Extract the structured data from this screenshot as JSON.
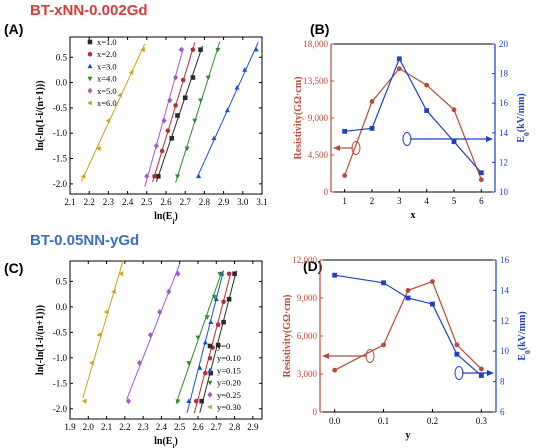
{
  "titles": {
    "top": "BT-xNN-0.002Gd",
    "bottom": "BT-0.05NN-yGd"
  },
  "chart_data": [
    {
      "panel": "(A)",
      "type": "scatter",
      "xlabel": "ln(E_i)",
      "ylabel": "ln(-ln(1-i/(n+1)))",
      "xlim": [
        2.1,
        3.1
      ],
      "ylim": [
        -2.2,
        0.9
      ],
      "xticks": [
        2.1,
        2.2,
        2.3,
        2.4,
        2.5,
        2.6,
        2.7,
        2.8,
        2.9,
        3.0,
        3.1
      ],
      "xtick_labels": [
        "2.1",
        "2.2",
        "2.3",
        "2.4",
        "2.5",
        "2.6",
        "2.7",
        "2.8",
        "2.9",
        "3.0",
        "3.1"
      ],
      "yticks": [
        -2.0,
        -1.5,
        -1.0,
        -0.5,
        0.0,
        0.5
      ],
      "ytick_labels": [
        "-2.0",
        "-1.5",
        "-1.0",
        "-0.5",
        "0.0",
        "0.5"
      ],
      "legend_position": "top-left",
      "series": [
        {
          "name": "x=1.0",
          "color": "#2b2b2b",
          "marker": "square",
          "x": [
            2.56,
            2.63,
            2.66,
            2.7,
            2.74,
            2.78
          ],
          "y": [
            -1.85,
            -1.1,
            -0.65,
            -0.3,
            0.1,
            0.65
          ]
        },
        {
          "name": "x=2.0",
          "color": "#b2303a",
          "marker": "circle",
          "x": [
            2.54,
            2.58,
            2.61,
            2.65,
            2.69,
            2.74
          ],
          "y": [
            -1.85,
            -1.35,
            -0.95,
            -0.45,
            0.05,
            0.65
          ]
        },
        {
          "name": "x=3.0",
          "color": "#1f50c8",
          "marker": "triangle-up",
          "x": [
            2.77,
            2.85,
            2.92,
            2.97,
            3.01,
            3.07
          ],
          "y": [
            -1.85,
            -1.1,
            -0.55,
            -0.1,
            0.25,
            0.65
          ]
        },
        {
          "name": "x=4.0",
          "color": "#2e8b2e",
          "marker": "triangle-down",
          "x": [
            2.66,
            2.71,
            2.75,
            2.78,
            2.82,
            2.87
          ],
          "y": [
            -1.85,
            -1.3,
            -0.75,
            -0.35,
            0.1,
            0.65
          ]
        },
        {
          "name": "x=5.0",
          "color": "#a05ad0",
          "marker": "diamond",
          "x": [
            2.5,
            2.55,
            2.59,
            2.62,
            2.65,
            2.68
          ],
          "y": [
            -1.85,
            -1.25,
            -0.75,
            -0.35,
            0.1,
            0.65
          ]
        },
        {
          "name": "x=6.0",
          "color": "#c9a516",
          "marker": "triangle-left",
          "x": [
            2.17,
            2.25,
            2.3,
            2.36,
            2.42,
            2.48
          ],
          "y": [
            -1.85,
            -1.3,
            -0.75,
            -0.25,
            0.2,
            0.65
          ]
        }
      ]
    },
    {
      "panel": "(B)",
      "type": "line",
      "xlabel": "x",
      "ylabel_left": "Resistivity(GΩ·cm)",
      "ylabel_right": "E_0(kV/mm)",
      "xlim": [
        0.5,
        6.5
      ],
      "ylim_left": [
        0,
        18000
      ],
      "ylim_right": [
        10,
        20
      ],
      "xticks": [
        1,
        2,
        3,
        4,
        5,
        6
      ],
      "xtick_labels": [
        "1",
        "2",
        "3",
        "4",
        "5",
        "6"
      ],
      "yticks_left": [
        0,
        4500,
        9000,
        13500,
        18000
      ],
      "ytick_labels_left": [
        "0",
        "4,500",
        "9,000",
        "13,500",
        "18,000"
      ],
      "yticks_right": [
        10,
        12,
        14,
        16,
        18,
        20
      ],
      "ytick_labels_right": [
        "10",
        "12",
        "14",
        "16",
        "18",
        "20"
      ],
      "series": [
        {
          "axis": "left",
          "color": "#b84a3a",
          "marker": "circle",
          "x": [
            1,
            2,
            3,
            4,
            5,
            6
          ],
          "y": [
            2000,
            11000,
            15000,
            13000,
            10000,
            1500
          ]
        },
        {
          "axis": "right",
          "color": "#1f3fc8",
          "marker": "square",
          "x": [
            1,
            2,
            3,
            4,
            5,
            6
          ],
          "y": [
            14.1,
            14.3,
            19.0,
            15.5,
            13.4,
            11.3
          ]
        }
      ]
    },
    {
      "panel": "(C)",
      "type": "scatter",
      "xlabel": "ln(E_i)",
      "ylabel": "ln(-ln(1-i/(n+1)))",
      "xlim": [
        1.9,
        2.95
      ],
      "ylim": [
        -2.2,
        0.9
      ],
      "xticks": [
        1.9,
        2.0,
        2.1,
        2.2,
        2.3,
        2.4,
        2.5,
        2.6,
        2.7,
        2.8,
        2.9
      ],
      "xtick_labels": [
        "1.9",
        "2.0",
        "2.1",
        "2.2",
        "2.3",
        "2.4",
        "2.5",
        "2.6",
        "2.7",
        "2.8",
        "2.9"
      ],
      "yticks": [
        -2.0,
        -1.5,
        -1.0,
        -0.5,
        0.0,
        0.5
      ],
      "ytick_labels": [
        "-2.0",
        "-1.5",
        "-1.0",
        "-0.5",
        "0.0",
        "0.5"
      ],
      "legend_position": "bottom-right",
      "series": [
        {
          "name": "y=0",
          "color": "#2b2b2b",
          "marker": "square",
          "x": [
            2.62,
            2.67,
            2.71,
            2.74,
            2.77,
            2.8
          ],
          "y": [
            -1.85,
            -1.3,
            -0.75,
            -0.3,
            0.15,
            0.65
          ]
        },
        {
          "name": "y=0.10",
          "color": "#b2303a",
          "marker": "circle",
          "x": [
            2.59,
            2.64,
            2.68,
            2.71,
            2.74,
            2.77
          ],
          "y": [
            -1.85,
            -1.3,
            -0.8,
            -0.35,
            0.1,
            0.65
          ]
        },
        {
          "name": "y=0.15",
          "color": "#1f50c8",
          "marker": "triangle-up",
          "x": [
            2.55,
            2.61,
            2.64,
            2.67,
            2.7,
            2.73
          ],
          "y": [
            -1.85,
            -1.2,
            -0.7,
            -0.3,
            0.15,
            0.65
          ]
        },
        {
          "name": "y=0.20",
          "color": "#2e8b2e",
          "marker": "triangle-down",
          "x": [
            2.49,
            2.55,
            2.6,
            2.65,
            2.69,
            2.72
          ],
          "y": [
            -1.85,
            -1.1,
            -0.6,
            -0.2,
            0.2,
            0.65
          ]
        },
        {
          "name": "y=0.25",
          "color": "#a05ad0",
          "marker": "diamond",
          "x": [
            2.22,
            2.28,
            2.34,
            2.39,
            2.44,
            2.49
          ],
          "y": [
            -1.85,
            -1.1,
            -0.55,
            -0.1,
            0.3,
            0.65
          ]
        },
        {
          "name": "y=0.30",
          "color": "#c9a516",
          "marker": "triangle-left",
          "x": [
            1.98,
            2.02,
            2.06,
            2.1,
            2.14,
            2.18
          ],
          "y": [
            -1.85,
            -1.1,
            -0.55,
            -0.1,
            0.3,
            0.65
          ]
        }
      ]
    },
    {
      "panel": "(D)",
      "type": "line",
      "xlabel": "y",
      "ylabel_left": "Resistivity(GΩ·cm)",
      "ylabel_right": "E_0(kV/mm)",
      "xlim": [
        -0.03,
        0.33
      ],
      "ylim_left": [
        0,
        12000
      ],
      "ylim_right": [
        6,
        16
      ],
      "xticks": [
        0.0,
        0.1,
        0.2,
        0.3
      ],
      "xtick_labels": [
        "0.0",
        "0.1",
        "0.2",
        "0.3"
      ],
      "yticks_left": [
        0,
        3000,
        6000,
        9000,
        12000
      ],
      "ytick_labels_left": [
        "0",
        "3,000",
        "6,000",
        "9,000",
        "12,000"
      ],
      "yticks_right": [
        6,
        8,
        10,
        12,
        14,
        16
      ],
      "ytick_labels_right": [
        "6",
        "8",
        "10",
        "12",
        "14",
        "16"
      ],
      "series": [
        {
          "axis": "left",
          "color": "#b84a3a",
          "marker": "circle",
          "x": [
            0.0,
            0.1,
            0.15,
            0.2,
            0.25,
            0.3
          ],
          "y": [
            3300,
            5300,
            9600,
            10300,
            5300,
            3400
          ]
        },
        {
          "axis": "right",
          "color": "#1f3fc8",
          "marker": "square",
          "x": [
            0.0,
            0.1,
            0.15,
            0.2,
            0.25,
            0.3
          ],
          "y": [
            15.0,
            14.5,
            13.5,
            13.1,
            9.8,
            8.4
          ]
        }
      ]
    }
  ]
}
